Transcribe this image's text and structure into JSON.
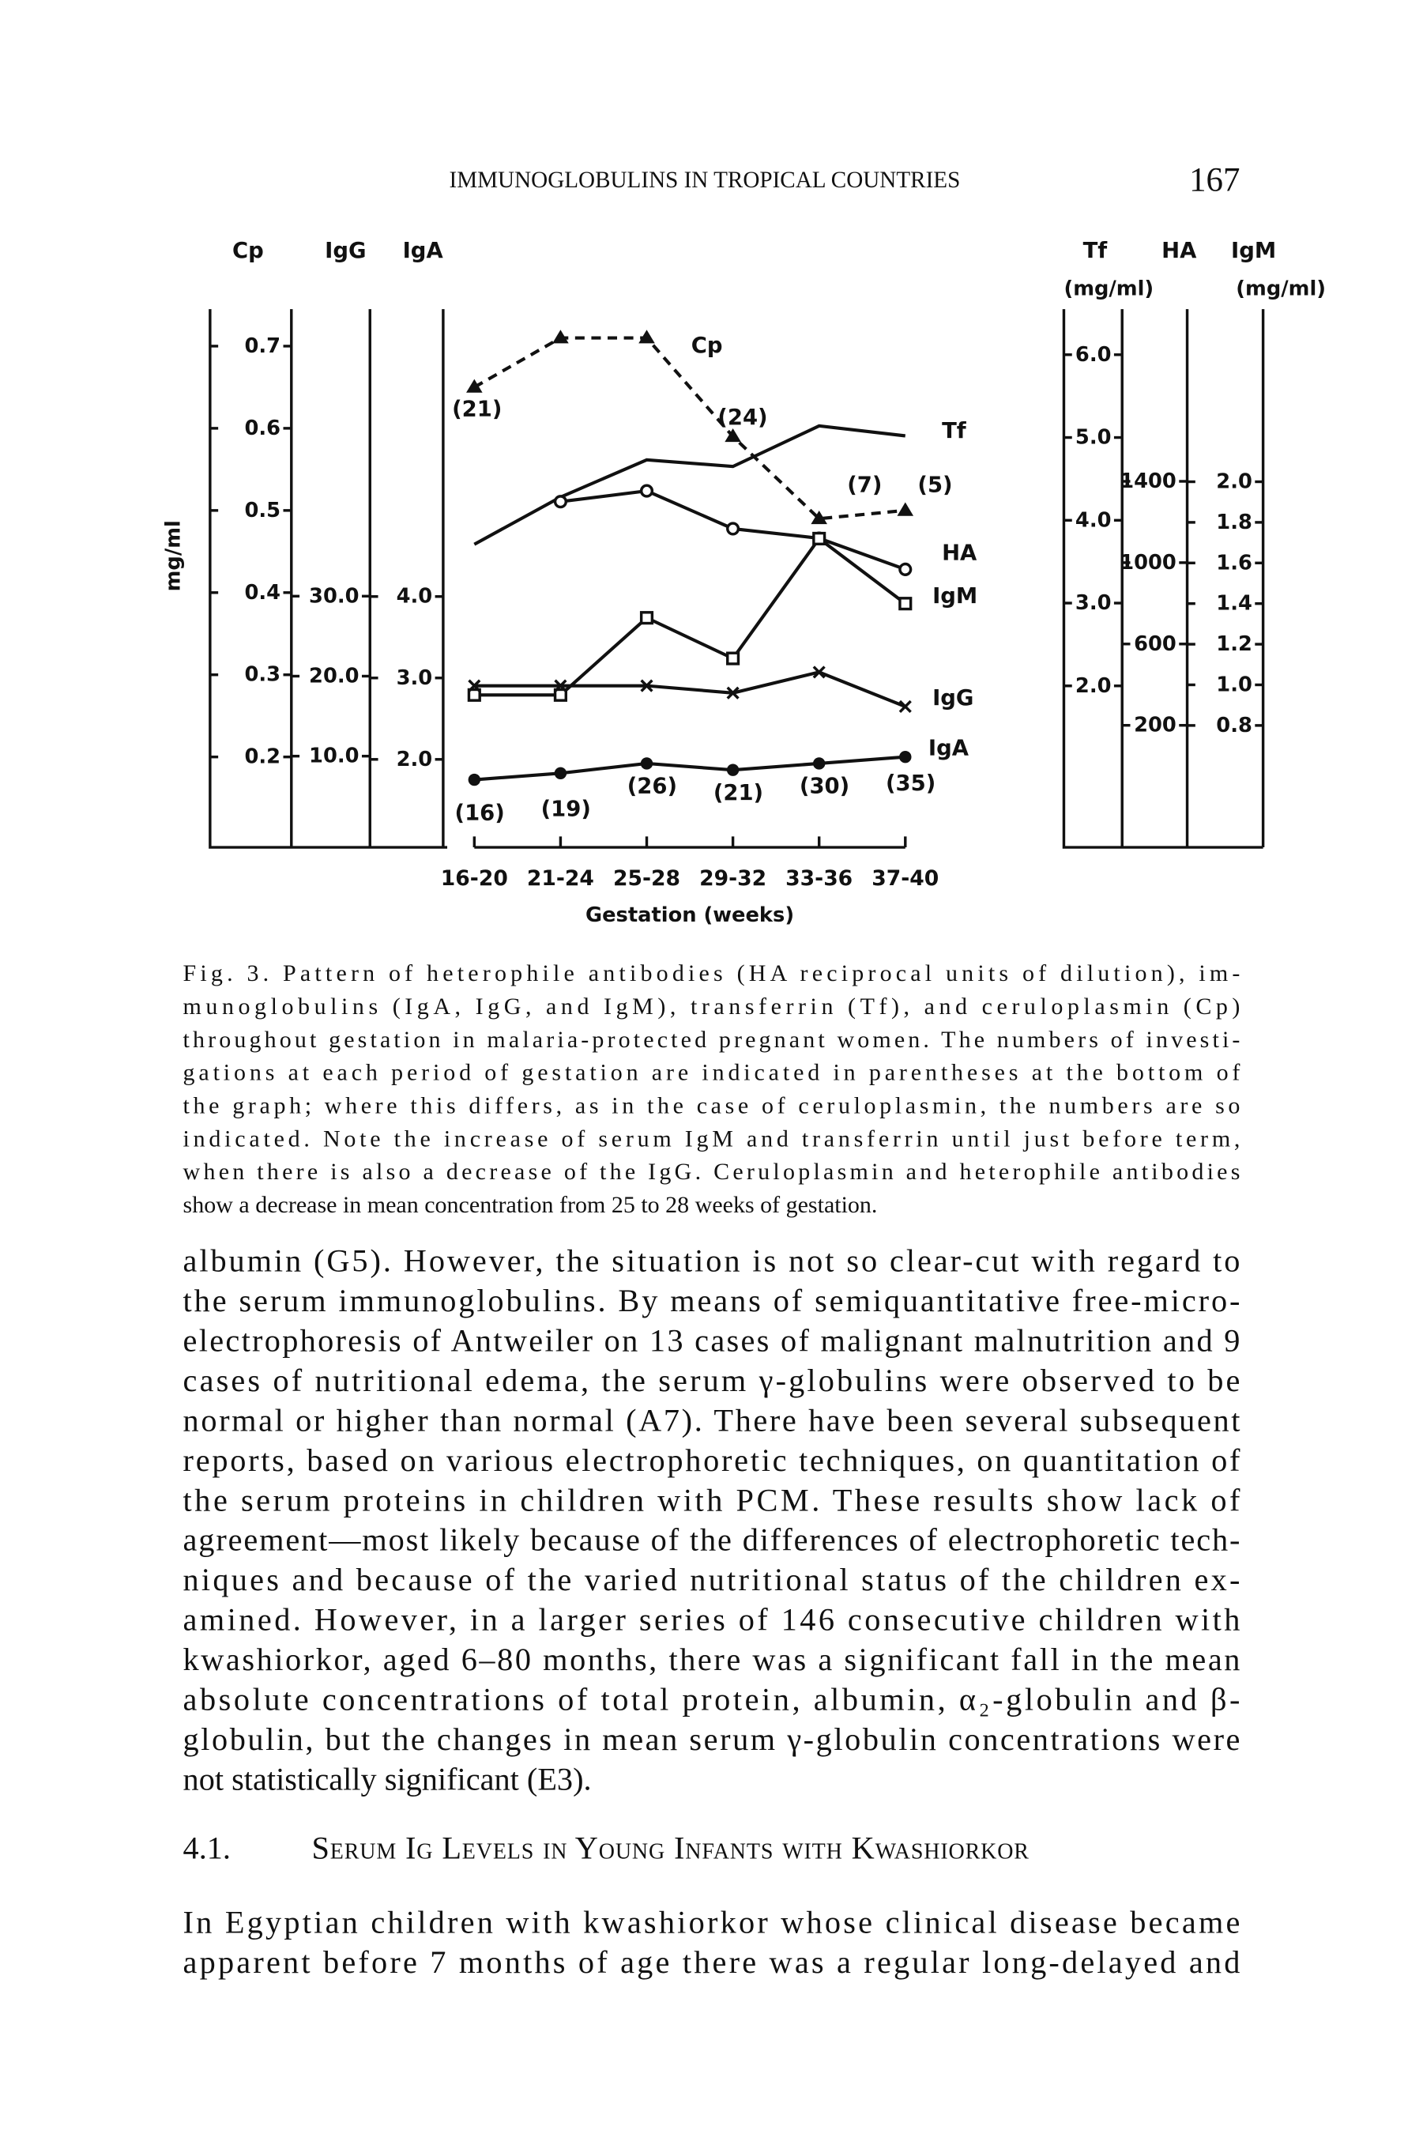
{
  "header": {
    "running_title": "IMMUNOGLOBULINS IN TROPICAL COUNTRIES",
    "page_number": "167"
  },
  "figure": {
    "chart_data": {
      "type": "line",
      "y_label": "mg/ml",
      "x_label": "Gestation (weeks)",
      "categories": [
        "16-20",
        "21-24",
        "25-28",
        "29-32",
        "33-36",
        "37-40"
      ],
      "y_axes": [
        {
          "name": "Cp",
          "ylim": [
            0.09,
            0.75
          ],
          "yticks": [
            0.7,
            0.6,
            0.5,
            0.4,
            0.3,
            0.2
          ]
        },
        {
          "name": "IgG",
          "ylim": [
            -1.4,
            66.4
          ],
          "yticks": [
            {
              "value": 30,
              "label": "30.0"
            },
            {
              "value": 20,
              "label": "20.0"
            },
            {
              "value": 10,
              "label": "10.0"
            }
          ]
        },
        {
          "name": "IgA",
          "ylim": [
            0.92,
            7.58
          ],
          "yticks": [
            {
              "value": 4,
              "label": "4.0"
            },
            {
              "value": 3,
              "label": "3.0"
            },
            {
              "value": 2,
              "label": "2.0"
            }
          ]
        },
        {
          "name": "Tf",
          "unit": "(mg/ml)",
          "ylim": [
            0.05,
            6.6
          ],
          "yticks": [
            {
              "value": 6,
              "label": "6.0"
            },
            {
              "value": 5,
              "label": "5.0"
            },
            {
              "value": 4,
              "label": "4.0"
            },
            {
              "value": 3,
              "label": "3.0"
            },
            {
              "value": 2,
              "label": "2.0"
            }
          ]
        },
        {
          "name": "HA",
          "ylim": [
            -400,
            2267
          ],
          "yticks": [
            1400,
            1000,
            600,
            200
          ]
        },
        {
          "name": "IgM",
          "unit": "(mg/ml)",
          "ylim": [
            0.2,
            2.87
          ],
          "yticks": [
            {
              "value": 2,
              "label": "2.0"
            },
            1.8,
            1.6,
            1.4,
            1.2,
            {
              "value": 1,
              "label": "1.0"
            },
            0.8
          ]
        }
      ],
      "series": [
        {
          "name": "Cp",
          "axis": 0,
          "marker": "triangle",
          "dashed": true,
          "values": [
            0.65,
            0.71,
            0.71,
            0.59,
            0.49,
            0.5
          ]
        },
        {
          "name": "Tf",
          "axis": 3,
          "marker": "none",
          "values": [
            3.71,
            4.28,
            4.73,
            4.65,
            5.14,
            5.02
          ]
        },
        {
          "name": "HA",
          "axis": 4,
          "marker": "circle",
          "values": [
            null,
            1300,
            1353,
            1167,
            1120,
            967
          ]
        },
        {
          "name": "IgM",
          "axis": 5,
          "marker": "square",
          "values": [
            0.95,
            0.95,
            1.33,
            1.13,
            1.72,
            1.4
          ]
        },
        {
          "name": "IgG",
          "axis": 1,
          "marker": "cross",
          "values": [
            18.8,
            18.8,
            18.8,
            17.9,
            20.5,
            16.2
          ]
        },
        {
          "name": "IgA",
          "axis": 2,
          "marker": "dot",
          "values": [
            1.75,
            1.83,
            1.95,
            1.87,
            1.95,
            2.03
          ]
        }
      ],
      "sample_sizes": [
        "(16)",
        "(19)",
        "(26)",
        "(21)",
        "(30)",
        "(35)"
      ],
      "cp_sample_sizes": [
        "(21)",
        null,
        null,
        "(24)",
        "(7)",
        "(5)"
      ]
    },
    "caption_lines": [
      "Fig. 3. Pattern of heterophile antibodies (HA reciprocal units of dilution), im-",
      "munoglobulins (IgA, IgG, and IgM), transferrin (Tf), and ceruloplasmin (Cp)",
      "throughout gestation in malaria-protected pregnant women. The numbers of investi-",
      "gations at each period of gestation are indicated in parentheses at the bottom of",
      "the graph; where this differs, as in the case of ceruloplasmin, the numbers are so",
      "indicated. Note the increase of serum IgM and transferrin until just before term,",
      "when there is also a decrease of the IgG. Ceruloplasmin and heterophile antibodies",
      "show a decrease in mean concentration from 25 to 28 weeks of gestation."
    ]
  },
  "body": {
    "paragraph_1": [
      "albumin (G5). However, the situation is not so clear-cut with regard to",
      "the serum immunoglobulins. By means of semiquantitative free-micro-",
      "electrophoresis of Antweiler on 13 cases of malignant malnutrition and 9",
      "cases of nutritional edema, the serum γ-globulins were observed to be",
      "normal or higher than normal (A7). There have been several subsequent",
      "reports, based on various electrophoretic techniques, on quantitation of",
      "the serum proteins in children with PCM. These results show lack of",
      "agreement—most likely because of the differences of electrophoretic tech-",
      "niques and because of the varied nutritional status of the children ex-",
      "amined. However, in a larger series of 146 consecutive children with",
      "kwashiorkor, aged 6–80 months, there was a significant fall in the mean",
      "absolute concentrations of total protein, albumin, α₂-globulin and β-",
      "globulin, but the changes in mean serum γ-globulin concentrations were",
      "not statistically significant (E3)."
    ],
    "section_number": "4.1.",
    "section_title": "Serum Ig Levels in Young Infants with Kwashiorkor",
    "paragraph_2": [
      "In Egyptian children with kwashiorkor whose clinical disease became",
      "apparent before 7 months of age there was a regular long-delayed and"
    ]
  }
}
